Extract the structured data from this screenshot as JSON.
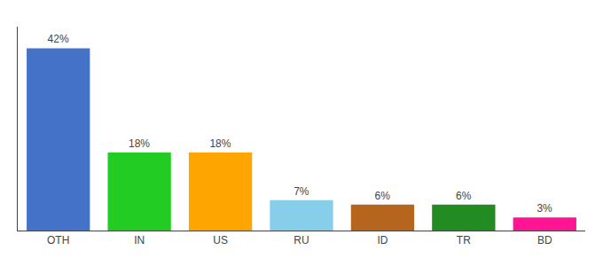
{
  "chart_data": {
    "type": "bar",
    "categories": [
      "OTH",
      "IN",
      "US",
      "RU",
      "ID",
      "TR",
      "BD"
    ],
    "values": [
      42,
      18,
      18,
      7,
      6,
      6,
      3
    ],
    "value_labels": [
      "42%",
      "18%",
      "18%",
      "7%",
      "6%",
      "6%",
      "3%"
    ],
    "colors": [
      "#4472c9",
      "#22cc22",
      "#ffa500",
      "#87ceeb",
      "#b5651d",
      "#228b22",
      "#ff1493"
    ],
    "ylim": [
      0,
      47
    ],
    "grid": false,
    "data_labels": true,
    "tick_labels": "x"
  }
}
